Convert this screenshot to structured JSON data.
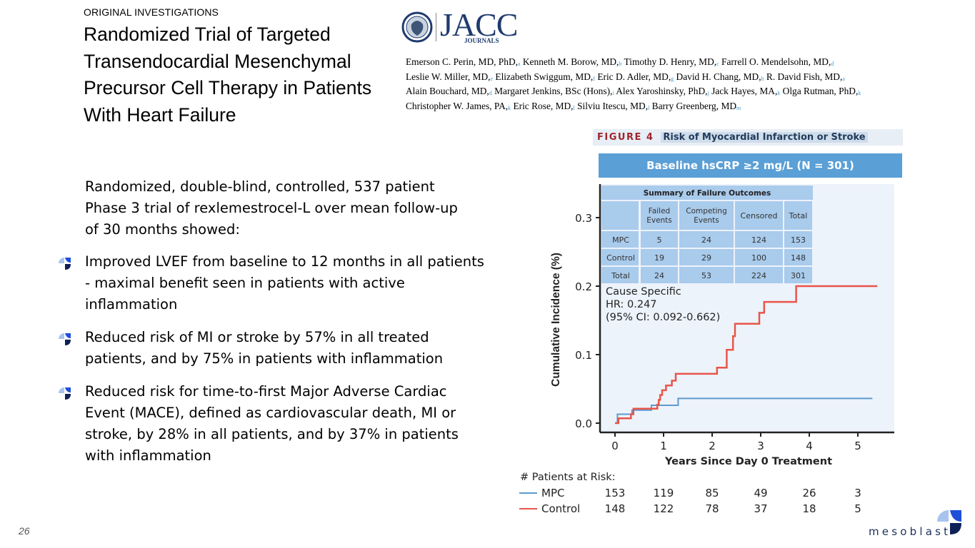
{
  "header": {
    "kicker": "ORIGINAL INVESTIGATIONS",
    "title_lines": [
      "Randomized Trial of Targeted",
      "Transendocardial Mesenchymal",
      "Precursor Cell Therapy in Patients",
      "With Heart Failure"
    ]
  },
  "journal": {
    "name": "JACC",
    "subtitle": "JOURNALS"
  },
  "authors": [
    [
      [
        "Emerson C. Perin, MD, PhD,",
        "a"
      ],
      [
        "Kenneth M. Borow, MD,",
        "b"
      ],
      [
        "Timothy D. Henry, MD,",
        "c"
      ],
      [
        "Farrell O. Mendelsohn, MD,",
        "d"
      ]
    ],
    [
      [
        "Leslie W. Miller, MD,",
        "e"
      ],
      [
        "Elizabeth Swiggum, MD,",
        "f"
      ],
      [
        "Eric D. Adler, MD,",
        "g"
      ],
      [
        "David H. Chang, MD,",
        "h"
      ],
      [
        "R. David Fish, MD,",
        "a"
      ]
    ],
    [
      [
        "Alain Bouchard, MD,",
        "d"
      ],
      [
        "Margaret Jenkins, BSc (Hons),",
        "i"
      ],
      [
        "Alex Yaroshinsky, PhD,",
        "j"
      ],
      [
        "Jack Hayes, MA,",
        "k"
      ],
      [
        "Olga Rutman, PhD,",
        "k"
      ]
    ],
    [
      [
        "Christopher W. James, PA,",
        "k"
      ],
      [
        "Eric Rose, MD,",
        "l"
      ],
      [
        "Silviu Itescu, MD,",
        "l"
      ],
      [
        "Barry Greenberg, MD",
        "m"
      ]
    ]
  ],
  "intro": "Randomized, double-blind, controlled, 537 patient Phase 3 trial of rexlemestrocel-L over mean follow-up of 30 months showed:",
  "bullets": [
    "Improved LVEF from baseline to 12 months in all patients - maximal benefit seen in patients with active inflammation",
    "Reduced risk of MI or stroke by 57% in all treated patients, and  by 75% in patients with inflammation",
    "Reduced risk for time-to-first Major Adverse Cardiac Event (MACE), defined as cardiovascular death, MI or stroke, by 28% in all patients, and by 37% in patients with inflammation"
  ],
  "footer": {
    "page_number": "26",
    "brand": "mesoblast"
  },
  "figure": {
    "label": "FIGURE 4",
    "title": "Risk of Myocardial Infarction or Stroke",
    "subheader": "Baseline hsCRP ≥2 mg/L (N = 301)"
  },
  "chart_data": {
    "type": "line",
    "step": true,
    "title": "Risk of Myocardial Infarction or Stroke",
    "subtitle": "Baseline hsCRP ≥2 mg/L (N = 301)",
    "xlabel": "Years Since Day 0 Treatment",
    "ylabel": "Cumulative Incidence (%)",
    "xlim": [
      -0.3,
      5.7
    ],
    "ylim": [
      -0.013,
      0.35
    ],
    "xticks": [
      0,
      1,
      2,
      3,
      4,
      5
    ],
    "yticks": [
      0.0,
      0.1,
      0.2,
      0.3
    ],
    "ytick_labels": [
      "0.0",
      "0.1",
      "0.2",
      "0.3"
    ],
    "grid": false,
    "colors": {
      "MPC": "#5b9bd0",
      "Control": "#e8554a",
      "plot_bg": "#edf3fb",
      "table_bg": "#a9cbec"
    },
    "series": [
      {
        "name": "MPC",
        "points": [
          [
            0.05,
            0.0
          ],
          [
            0.05,
            0.013
          ],
          [
            0.35,
            0.013
          ],
          [
            0.35,
            0.019
          ],
          [
            0.75,
            0.019
          ],
          [
            0.75,
            0.026
          ],
          [
            1.3,
            0.026
          ],
          [
            1.3,
            0.036
          ],
          [
            5.3,
            0.036
          ]
        ]
      },
      {
        "name": "Control",
        "points": [
          [
            0.0,
            0.0
          ],
          [
            0.07,
            0.0
          ],
          [
            0.07,
            0.007
          ],
          [
            0.33,
            0.007
          ],
          [
            0.33,
            0.013
          ],
          [
            0.38,
            0.013
          ],
          [
            0.38,
            0.021
          ],
          [
            0.87,
            0.021
          ],
          [
            0.87,
            0.027
          ],
          [
            0.9,
            0.027
          ],
          [
            0.9,
            0.034
          ],
          [
            0.93,
            0.034
          ],
          [
            0.93,
            0.041
          ],
          [
            0.97,
            0.041
          ],
          [
            0.97,
            0.048
          ],
          [
            1.05,
            0.048
          ],
          [
            1.05,
            0.055
          ],
          [
            1.17,
            0.055
          ],
          [
            1.17,
            0.062
          ],
          [
            1.25,
            0.062
          ],
          [
            1.25,
            0.072
          ],
          [
            2.1,
            0.072
          ],
          [
            2.1,
            0.081
          ],
          [
            2.3,
            0.081
          ],
          [
            2.3,
            0.107
          ],
          [
            2.43,
            0.107
          ],
          [
            2.43,
            0.127
          ],
          [
            2.47,
            0.127
          ],
          [
            2.47,
            0.145
          ],
          [
            2.97,
            0.145
          ],
          [
            2.97,
            0.161
          ],
          [
            3.07,
            0.161
          ],
          [
            3.07,
            0.177
          ],
          [
            3.73,
            0.177
          ],
          [
            3.73,
            0.2
          ],
          [
            5.4,
            0.2
          ]
        ]
      }
    ],
    "annotation": [
      "Cause Specific",
      "HR: 0.247",
      "(95% CI: 0.092-0.662)"
    ],
    "summary_table": {
      "title": "Summary of Failure Outcomes",
      "columns": [
        "",
        "Failed Events",
        "Competing Events",
        "Censored",
        "Total"
      ],
      "rows": [
        [
          "MPC",
          "5",
          "24",
          "124",
          "153"
        ],
        [
          "Control",
          "19",
          "29",
          "100",
          "148"
        ],
        [
          "Total",
          "24",
          "53",
          "224",
          "301"
        ]
      ]
    },
    "at_risk": {
      "title": "# Patients at Risk:",
      "rows": [
        {
          "name": "MPC",
          "values": [
            "153",
            "119",
            "85",
            "49",
            "26",
            "3"
          ]
        },
        {
          "name": "Control",
          "values": [
            "148",
            "122",
            "78",
            "37",
            "18",
            "5"
          ]
        }
      ]
    }
  }
}
